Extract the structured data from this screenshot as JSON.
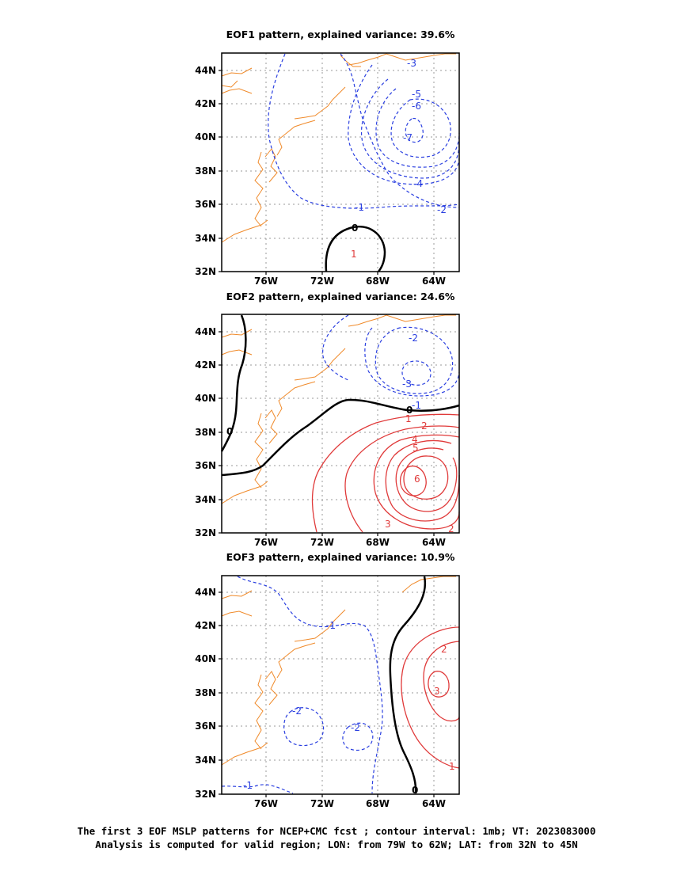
{
  "panels": [
    {
      "title": "EOF1 pattern, explained variance: 39.6%",
      "lat_labels": [
        "44N",
        "42N",
        "40N",
        "38N",
        "36N",
        "34N",
        "32N"
      ],
      "lon_labels": [
        "76W",
        "72W",
        "68W",
        "64W"
      ],
      "contour_labels": {
        "neg": [
          "-1",
          "-2",
          "-3",
          "-4",
          "-5",
          "-6",
          "-7"
        ],
        "zero": [
          "0"
        ],
        "pos": [
          "1"
        ]
      }
    },
    {
      "title": "EOF2 pattern, explained variance: 24.6%",
      "lat_labels": [
        "44N",
        "42N",
        "40N",
        "38N",
        "36N",
        "34N",
        "32N"
      ],
      "lon_labels": [
        "76W",
        "72W",
        "68W",
        "64W"
      ],
      "contour_labels": {
        "neg": [
          "-1",
          "-2",
          "-3"
        ],
        "zero": [
          "0",
          "0"
        ],
        "pos": [
          "1",
          "2",
          "3",
          "4",
          "5",
          "6",
          "2"
        ]
      }
    },
    {
      "title": "EOF3 pattern, explained variance: 10.9%",
      "lat_labels": [
        "44N",
        "42N",
        "40N",
        "38N",
        "36N",
        "34N",
        "32N"
      ],
      "lon_labels": [
        "76W",
        "72W",
        "68W",
        "64W"
      ],
      "contour_labels": {
        "neg": [
          "-1",
          "-2",
          "-2",
          "-1"
        ],
        "zero": [
          "0"
        ],
        "pos": [
          "2",
          "3",
          "1"
        ]
      }
    }
  ],
  "caption": {
    "line1": "The first 3 EOF MSLP patterns for NCEP+CMC fcst ; contour interval: 1mb; VT: 2023083000",
    "line2": "Analysis is computed for valid region; LON: from 79W to 62W; LAT: from 32N to 45N"
  },
  "colors": {
    "negative": "#2a3fe0",
    "positive": "#e03a3a",
    "zero": "#000000",
    "coast": "#f08a2a",
    "grid": "#9a9a9a"
  }
}
